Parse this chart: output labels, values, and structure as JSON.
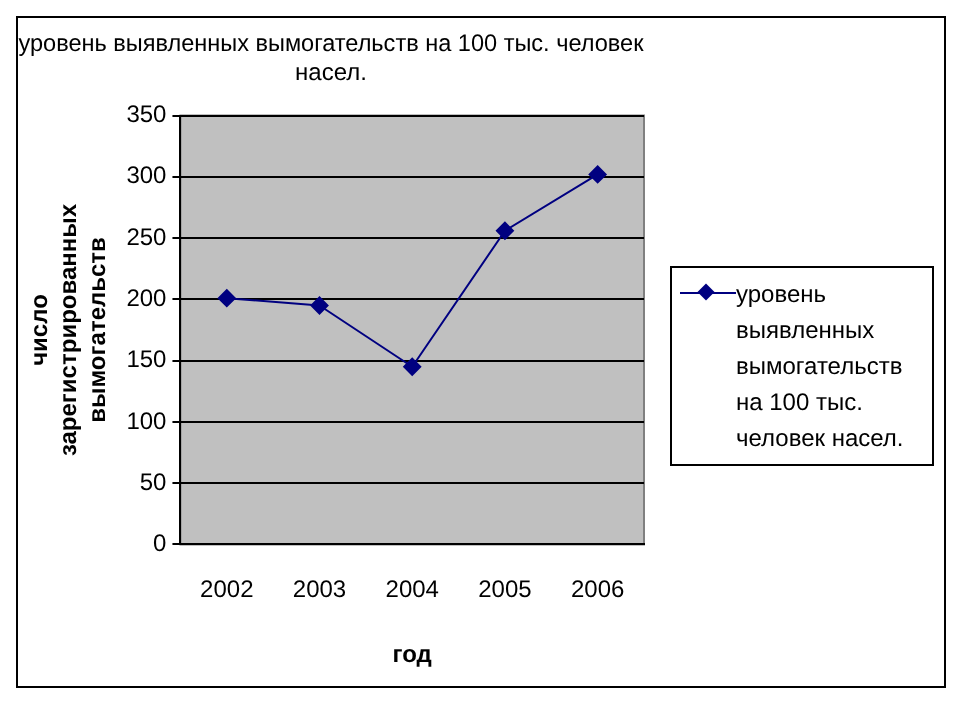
{
  "chart_data": {
    "type": "line",
    "title": "уровень выявленных вымогательств на 100 тыс. человек насел.",
    "xlabel": "год",
    "ylabel": "число зарегистрированных вымогательств",
    "categories": [
      "2002",
      "2003",
      "2004",
      "2005",
      "2006"
    ],
    "series": [
      {
        "name": "уровень выявленных вымогательств на 100 тыс. человек насел.",
        "color": "#000080",
        "values": [
          201,
          195,
          145,
          256,
          302
        ]
      }
    ],
    "ylim": [
      0,
      350
    ],
    "yticks": [
      0,
      50,
      100,
      150,
      200,
      250,
      300,
      350
    ],
    "grid": "y",
    "legend": "right",
    "marker": "diamond",
    "line_style": "solid"
  }
}
